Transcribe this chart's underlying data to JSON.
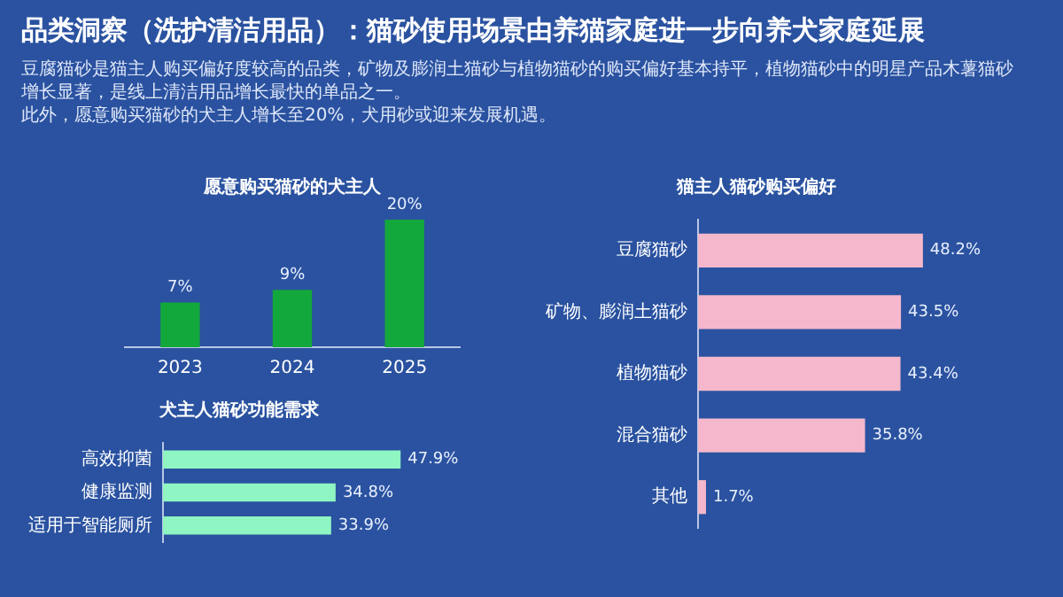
{
  "chart_data": [
    {
      "type": "other",
      "title": "品类洞察（洗护清洁用品）：猫砂使用场景由养猫家庭进一步向养犬家庭延展",
      "annotations": [
        "豆腐猫砂是猫主人购买偏好度较高的品类，矿物及膨润土猫砂与植物猫砂的购买偏好基本持平，植物猫砂中的明星产品木薯猫砂增长显著，是线上清洁用品增长最快的单品之一。",
        "此外，愿意购买猫砂的犬主人增长至20%，犬用砂或迎来发展机遇。"
      ]
    },
    {
      "type": "bar",
      "title": "愿意购买猫砂的犬主人",
      "categories": [
        "2023",
        "2024",
        "2025"
      ],
      "values": [
        7,
        9,
        20
      ],
      "color": "#12a83c",
      "value_labels": [
        "7%",
        "9%",
        "20%"
      ]
    },
    {
      "type": "bar",
      "orientation": "horizontal",
      "title": "犬主人猫砂功能需求",
      "categories": [
        "高效抑菌",
        "健康监测",
        "适用于智能厕所"
      ],
      "values": [
        47.9,
        34.8,
        33.9
      ],
      "color": "#8ff5c2",
      "value_labels": [
        "47.9%",
        "34.8%",
        "33.9%"
      ]
    },
    {
      "type": "bar",
      "orientation": "horizontal",
      "title": "猫主人猫砂购买偏好",
      "categories": [
        "豆腐猫砂",
        "矿物、膨润土猫砂",
        "植物猫砂",
        "混合猫砂",
        "其他"
      ],
      "values": [
        48.2,
        43.5,
        43.4,
        35.8,
        1.7
      ],
      "color": "#f5b7cb",
      "value_labels": [
        "48.2%",
        "43.5%",
        "43.4%",
        "35.8%",
        "1.7%"
      ]
    }
  ]
}
